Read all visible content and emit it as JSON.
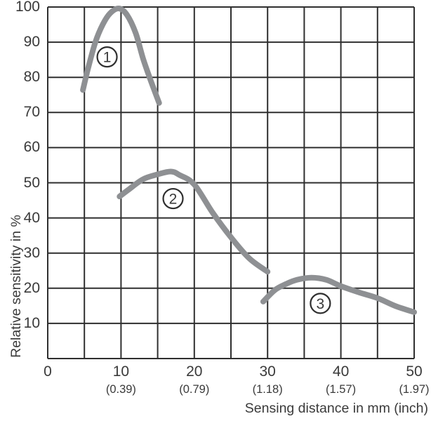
{
  "chart_data": {
    "type": "line",
    "title": "",
    "xlabel": "Sensing distance in mm (inch)",
    "ylabel": "Relative sensitivity in %",
    "xlim": [
      0,
      50
    ],
    "ylim": [
      0,
      100
    ],
    "x_grid_step": 5,
    "y_grid_step": 10,
    "grid": true,
    "legend_position": "none",
    "x_ticks": [
      {
        "mm": "0",
        "inch": ""
      },
      {
        "mm": "10",
        "inch": "(0.39)"
      },
      {
        "mm": "20",
        "inch": "(0.79)"
      },
      {
        "mm": "30",
        "inch": "(1.18)"
      },
      {
        "mm": "40",
        "inch": "(1.57)"
      },
      {
        "mm": "50",
        "inch": "(1.97)"
      }
    ],
    "y_ticks": [
      "100",
      "90",
      "80",
      "70",
      "60",
      "50",
      "40",
      "30",
      "20",
      "10"
    ],
    "series": [
      {
        "name": "curve-1",
        "label": "1",
        "label_pos": [
          8.1,
          85.8
        ],
        "points": [
          [
            4.8,
            76.4
          ],
          [
            5.5,
            82.5
          ],
          [
            6.5,
            90
          ],
          [
            7.5,
            95
          ],
          [
            8.5,
            98.2
          ],
          [
            9.7,
            99.6
          ],
          [
            10.8,
            97.8
          ],
          [
            12,
            92.6
          ],
          [
            13,
            85.4
          ],
          [
            14,
            79.4
          ],
          [
            15.2,
            72.7
          ]
        ]
      },
      {
        "name": "curve-2",
        "label": "2",
        "label_pos": [
          17.1,
          45.5
        ],
        "points": [
          [
            9.8,
            46.1
          ],
          [
            11,
            48
          ],
          [
            13,
            51
          ],
          [
            15,
            52.4
          ],
          [
            16.8,
            53.2
          ],
          [
            18,
            52.2
          ],
          [
            20,
            49.5
          ],
          [
            22.5,
            41.5
          ],
          [
            25,
            34.5
          ],
          [
            27.5,
            28.5
          ],
          [
            30,
            24.7
          ]
        ]
      },
      {
        "name": "curve-3",
        "label": "3",
        "label_pos": [
          37.2,
          15.7
        ],
        "points": [
          [
            29.4,
            16.2
          ],
          [
            31,
            19.5
          ],
          [
            32.5,
            21.2
          ],
          [
            34,
            22.4
          ],
          [
            36,
            23
          ],
          [
            38,
            22.4
          ],
          [
            40,
            20.6
          ],
          [
            42.5,
            18.8
          ],
          [
            45,
            17.2
          ],
          [
            47.5,
            14.9
          ],
          [
            50,
            13.2
          ]
        ]
      }
    ],
    "colors": {
      "curve": "#8e9093",
      "grid": "#2f2f2f",
      "text": "#3a3a3a",
      "background": "#ffffff",
      "marker_fill": "#ffffff"
    }
  }
}
